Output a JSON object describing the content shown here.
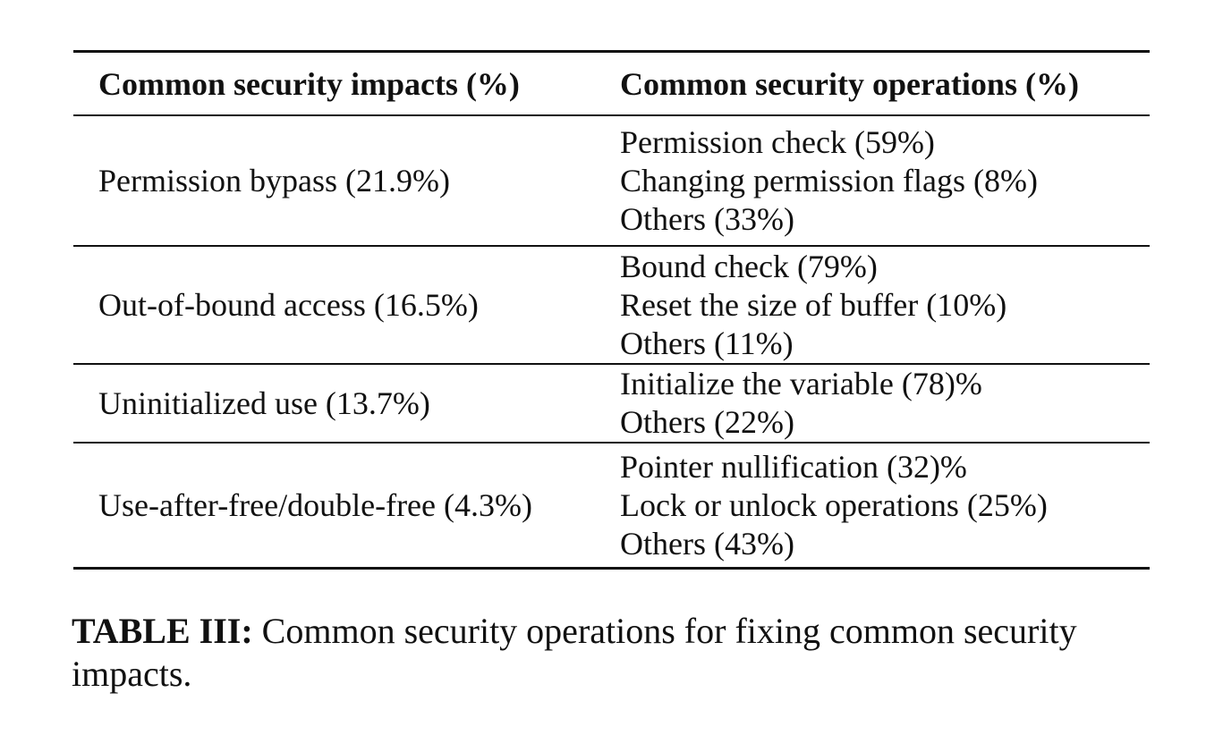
{
  "table": {
    "headers": [
      "Common security impacts (%)",
      "Common security operations (%)"
    ],
    "rows": [
      {
        "impact": "Permission bypass (21.9%)",
        "operations": [
          "Permission check (59%)",
          "Changing permission flags (8%)",
          "Others (33%)"
        ]
      },
      {
        "impact": "Out-of-bound access (16.5%)",
        "operations": [
          "Bound check (79%)",
          "Reset the size of buffer (10%)",
          "Others (11%)"
        ]
      },
      {
        "impact": "Uninitialized use (13.7%)",
        "operations": [
          "Initialize the variable (78)%",
          "Others (22%)"
        ]
      },
      {
        "impact": "Use-after-free/double-free (4.3%)",
        "operations": [
          "Pointer nullification (32)%",
          "Lock or unlock operations (25%)",
          "Others (43%)"
        ]
      }
    ]
  },
  "caption": {
    "label": "TABLE III:",
    "text": " Common security operations for fixing common security impacts."
  }
}
